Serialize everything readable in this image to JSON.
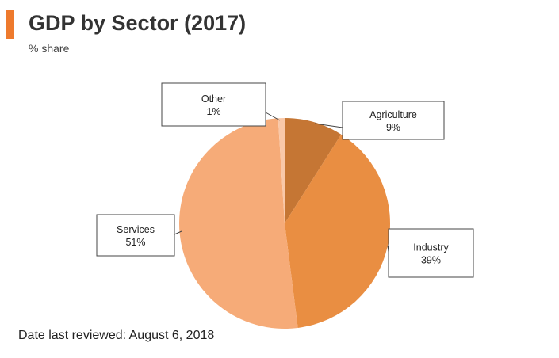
{
  "header": {
    "title": "GDP by Sector (2017)",
    "subtitle": "% share",
    "accent_color": "#ee7a2d"
  },
  "chart_data": {
    "type": "pie",
    "title": "GDP by Sector (2017)",
    "subtitle": "% share",
    "start_angle_deg": 0,
    "direction": "clockwise",
    "slices": [
      {
        "label": "Agriculture",
        "value": 9,
        "value_label": "9%",
        "color": "#c57634"
      },
      {
        "label": "Industry",
        "value": 39,
        "value_label": "39%",
        "color": "#e98e42"
      },
      {
        "label": "Services",
        "value": 51,
        "value_label": "51%",
        "color": "#f6ab78"
      },
      {
        "label": "Other",
        "value": 1,
        "value_label": "1%",
        "color": "#f9c8a8"
      }
    ]
  },
  "footer": {
    "text": "Date last reviewed: August 6, 2018"
  }
}
